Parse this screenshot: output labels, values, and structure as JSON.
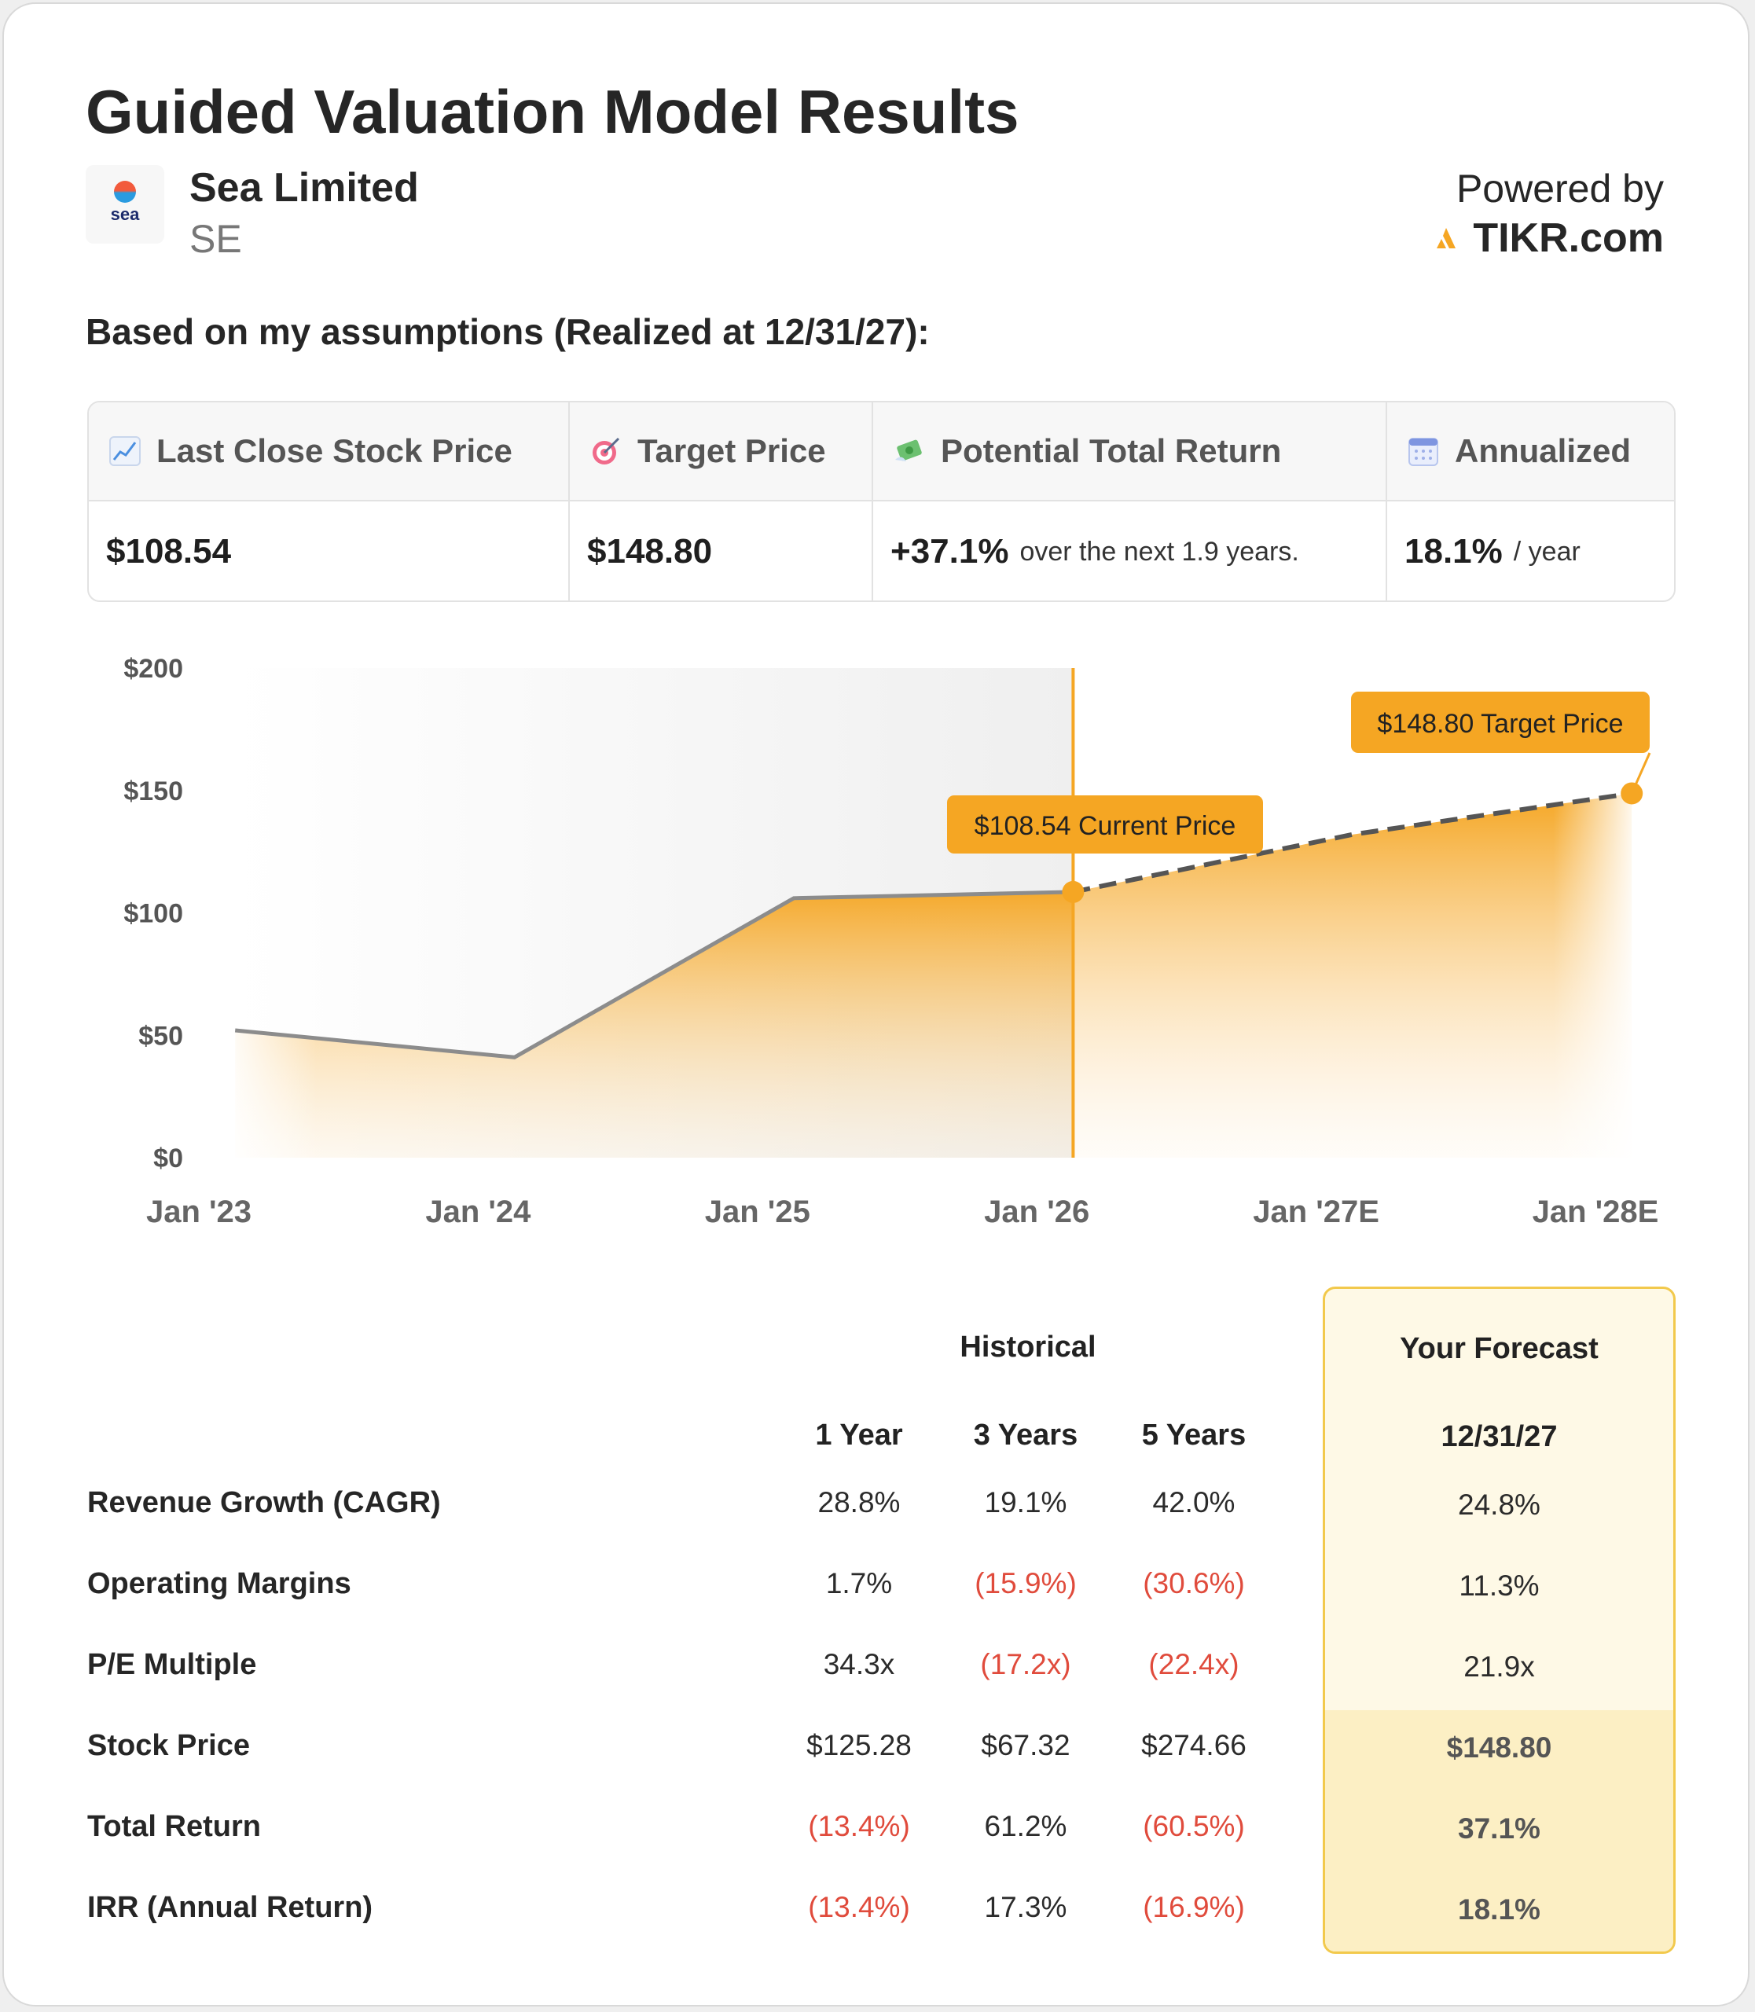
{
  "header": {
    "title": "Guided Valuation Model Results",
    "company_name": "Sea Limited",
    "ticker": "SE",
    "logo_text": "sea",
    "powered_by": "Powered by",
    "brand": "TIKR.com",
    "brand_color": "#f5a623"
  },
  "assumptions_heading": "Based on my assumptions (Realized at 12/31/27):",
  "summary": {
    "last_close": {
      "icon": "chart-increasing-icon",
      "label": "Last Close Stock Price",
      "value": "$108.54"
    },
    "target": {
      "icon": "target-icon",
      "label": "Target Price",
      "value": "$148.80"
    },
    "total_return": {
      "icon": "money-with-wings-icon",
      "label": "Potential Total Return",
      "value": "+37.1%",
      "note": "over the next 1.9 years."
    },
    "annualized": {
      "icon": "calendar-icon",
      "label": "Annualized",
      "value": "18.1%",
      "note": "/ year"
    }
  },
  "chart_data": {
    "type": "area",
    "x_ticks": [
      "Jan '23",
      "Jan '24",
      "Jan '25",
      "Jan '26",
      "Jan '27E",
      "Jan '28E"
    ],
    "y_ticks": [
      "$0",
      "$50",
      "$100",
      "$150",
      "$200"
    ],
    "ylim": [
      0,
      200
    ],
    "xlim": [
      2023,
      2028
    ],
    "historical": {
      "x": [
        2023.13,
        2024.13,
        2025.13,
        2026.13
      ],
      "y": [
        52,
        41,
        106,
        108.54
      ]
    },
    "forecast": {
      "x": [
        2026.13,
        2027.13,
        2028.13
      ],
      "y": [
        108.54,
        132,
        148.8
      ]
    },
    "annotations": {
      "current": {
        "x": 2026.13,
        "y": 108.54,
        "label": "$108.54 Current Price"
      },
      "target": {
        "x": 2028.13,
        "y": 148.8,
        "label": "$148.80 Target Price"
      }
    },
    "colors": {
      "accent": "#f5a623",
      "hist_line": "#8c8c8c",
      "forecast_line": "#555555"
    }
  },
  "table": {
    "historical_label": "Historical",
    "forecast_label": "Your Forecast",
    "columns": [
      "1 Year",
      "3 Years",
      "5 Years"
    ],
    "forecast_column": "12/31/27",
    "rows": [
      {
        "label": "Revenue Growth (CAGR)",
        "values": [
          "28.8%",
          "19.1%",
          "42.0%"
        ],
        "negative": [
          false,
          false,
          false
        ],
        "forecast": "24.8%"
      },
      {
        "label": "Operating Margins",
        "values": [
          "1.7%",
          "(15.9%)",
          "(30.6%)"
        ],
        "negative": [
          false,
          true,
          true
        ],
        "forecast": "11.3%"
      },
      {
        "label": "P/E Multiple",
        "values": [
          "34.3x",
          "(17.2x)",
          "(22.4x)"
        ],
        "negative": [
          false,
          true,
          true
        ],
        "forecast": "21.9x"
      },
      {
        "label": "Stock Price",
        "values": [
          "$125.28",
          "$67.32",
          "$274.66"
        ],
        "negative": [
          false,
          false,
          false
        ],
        "forecast": "$148.80"
      },
      {
        "label": "Total Return",
        "values": [
          "(13.4%)",
          "61.2%",
          "(60.5%)"
        ],
        "negative": [
          true,
          false,
          true
        ],
        "forecast": "37.1%"
      },
      {
        "label": "IRR (Annual Return)",
        "values": [
          "(13.4%)",
          "17.3%",
          "(16.9%)"
        ],
        "negative": [
          true,
          false,
          true
        ],
        "forecast": "18.1%"
      }
    ]
  }
}
